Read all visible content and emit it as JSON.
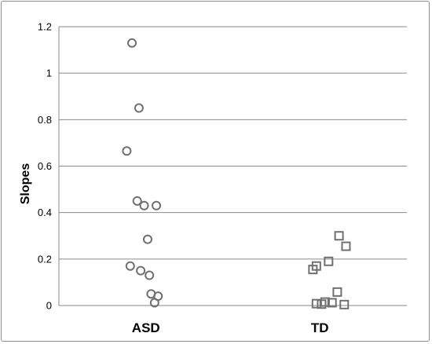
{
  "chart_data": {
    "type": "scatter",
    "title": "",
    "xlabel": "",
    "ylabel": "Slopes",
    "ylim": [
      0,
      1.2
    ],
    "yticks": [
      "0",
      "0.2",
      "0.4",
      "0.6",
      "0.8",
      "1",
      "1.2"
    ],
    "grid": true,
    "legend": "none",
    "categories": [
      "ASD",
      "TD"
    ],
    "series": [
      {
        "category": "ASD",
        "marker": "circle",
        "color": "#707070",
        "points": [
          {
            "x": 0.92,
            "y": 1.13
          },
          {
            "x": 0.96,
            "y": 0.85
          },
          {
            "x": 0.89,
            "y": 0.665
          },
          {
            "x": 0.95,
            "y": 0.45
          },
          {
            "x": 0.99,
            "y": 0.43
          },
          {
            "x": 1.06,
            "y": 0.43
          },
          {
            "x": 1.01,
            "y": 0.285
          },
          {
            "x": 0.91,
            "y": 0.17
          },
          {
            "x": 0.97,
            "y": 0.15
          },
          {
            "x": 1.02,
            "y": 0.13
          },
          {
            "x": 1.03,
            "y": 0.05
          },
          {
            "x": 1.07,
            "y": 0.04
          },
          {
            "x": 1.05,
            "y": 0.012
          }
        ]
      },
      {
        "category": "TD",
        "marker": "square",
        "color": "#707070",
        "points": [
          {
            "x": 2.11,
            "y": 0.3
          },
          {
            "x": 2.15,
            "y": 0.255
          },
          {
            "x": 2.05,
            "y": 0.19
          },
          {
            "x": 1.98,
            "y": 0.17
          },
          {
            "x": 1.96,
            "y": 0.155
          },
          {
            "x": 2.1,
            "y": 0.058
          },
          {
            "x": 2.03,
            "y": 0.015
          },
          {
            "x": 2.07,
            "y": 0.012
          },
          {
            "x": 1.98,
            "y": 0.008
          },
          {
            "x": 2.01,
            "y": 0.006
          },
          {
            "x": 2.14,
            "y": 0.004
          }
        ]
      }
    ]
  }
}
